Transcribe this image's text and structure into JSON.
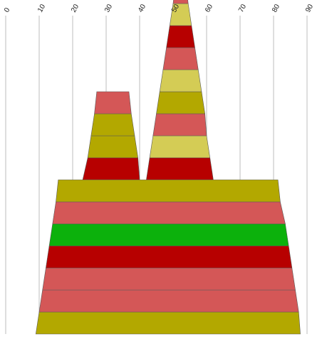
{
  "chart_data": {
    "type": "area",
    "title": "",
    "xlabel": "",
    "ylabel": "",
    "xlim": [
      0,
      90
    ],
    "grid": true,
    "x_ticks": [
      "0",
      "10",
      "20",
      "30",
      "40",
      "50",
      "60",
      "70",
      "80",
      "90"
    ],
    "palette": {
      "olive": "#b3a800",
      "light_red": "#d45757",
      "dark_red": "#b70000",
      "green": "#0cb10c",
      "yellow": "#d4cc55"
    },
    "stacks": [
      {
        "bands": [
          {
            "left": 9,
            "right": 88,
            "color": "#b3a800"
          },
          {
            "left": 10,
            "right": 87.5,
            "color": "#d45757"
          },
          {
            "left": 11,
            "right": 86.5,
            "color": "#d45757"
          },
          {
            "left": 12,
            "right": 85.5,
            "color": "#b70000"
          },
          {
            "left": 13,
            "right": 84.5,
            "color": "#0cb10c"
          },
          {
            "left": 14,
            "right": 83.5,
            "color": "#d45757"
          },
          {
            "left": 15,
            "right": 82,
            "color": "#b3a800"
          }
        ]
      },
      {
        "bands": [
          {
            "left": 23,
            "right": 40,
            "color": "#b70000"
          },
          {
            "left": 24.5,
            "right": 39.5,
            "color": "#b3a800"
          },
          {
            "left": 25.5,
            "right": 38.5,
            "color": "#b3a800"
          },
          {
            "left": 26.5,
            "right": 37.5,
            "color": "#d45757"
          }
        ]
      },
      {
        "bands": [
          {
            "left": 42,
            "right": 62,
            "color": "#b70000"
          },
          {
            "left": 43,
            "right": 61,
            "color": "#d4cc55"
          },
          {
            "left": 44,
            "right": 60,
            "color": "#d45757"
          },
          {
            "left": 45,
            "right": 59.5,
            "color": "#b3a800"
          },
          {
            "left": 46,
            "right": 58.5,
            "color": "#d4cc55"
          },
          {
            "left": 47,
            "right": 57.5,
            "color": "#d45757"
          },
          {
            "left": 48,
            "right": 56.5,
            "color": "#b70000"
          },
          {
            "left": 49,
            "right": 55.5,
            "color": "#d4cc55"
          },
          {
            "left": 50,
            "right": 54.5,
            "color": "#d45757"
          }
        ]
      }
    ]
  }
}
